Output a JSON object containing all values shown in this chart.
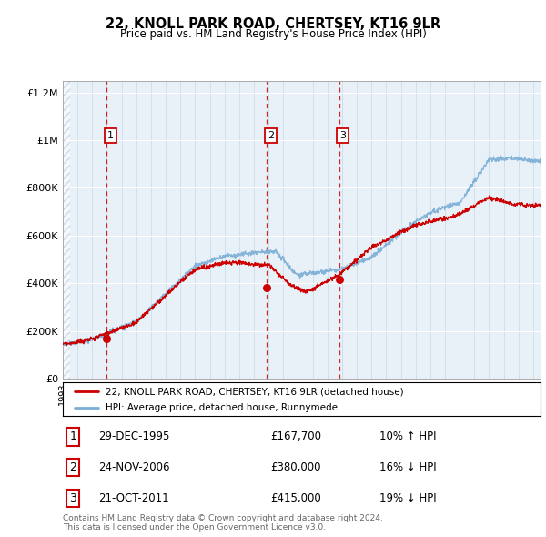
{
  "title": "22, KNOLL PARK ROAD, CHERTSEY, KT16 9LR",
  "subtitle": "Price paid vs. HM Land Registry's House Price Index (HPI)",
  "sale_labels": [
    "1",
    "2",
    "3"
  ],
  "sale_dates_year": [
    1995.99,
    2006.895,
    2011.8
  ],
  "sale_prices": [
    167700,
    380000,
    415000
  ],
  "legend_line1": "22, KNOLL PARK ROAD, CHERTSEY, KT16 9LR (detached house)",
  "legend_line2": "HPI: Average price, detached house, Runnymede",
  "table_rows": [
    [
      "1",
      "29-DEC-1995",
      "£167,700",
      "10% ↑ HPI"
    ],
    [
      "2",
      "24-NOV-2006",
      "£380,000",
      "16% ↓ HPI"
    ],
    [
      "3",
      "21-OCT-2011",
      "£415,000",
      "19% ↓ HPI"
    ]
  ],
  "footnote": "Contains HM Land Registry data © Crown copyright and database right 2024.\nThis data is licensed under the Open Government Licence v3.0.",
  "hpi_line_color": "#7aaed6",
  "sale_line_color": "#cc0000",
  "sale_dot_color": "#cc0000",
  "ylim_max": 1250000,
  "xmin": 1993,
  "xmax": 2025.5,
  "chart_bg": "#e8f0f8",
  "hatch_color": "#b0c8d8"
}
